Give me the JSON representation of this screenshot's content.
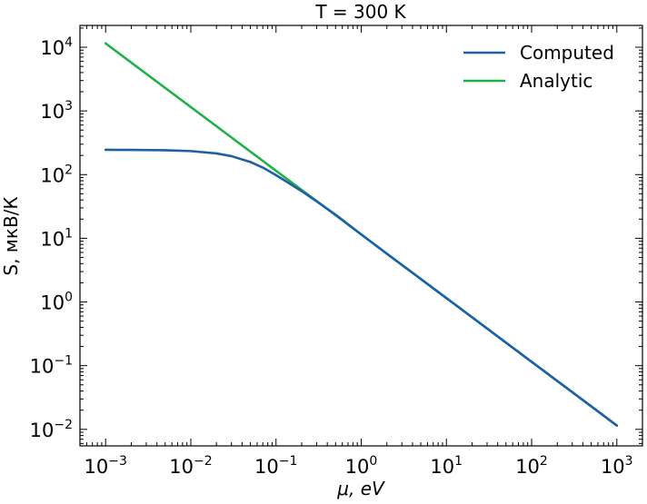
{
  "chart_data": {
    "type": "line",
    "title": "T = 300 K",
    "xlabel": "μ, eV",
    "ylabel": "S, мкВ/К",
    "xscale": "log",
    "yscale": "log",
    "xlim": [
      0.0005,
      2000
    ],
    "ylim": [
      0.0055,
      22000
    ],
    "xticks": [
      {
        "value": 0.001,
        "base": "10",
        "exp": "−3"
      },
      {
        "value": 0.01,
        "base": "10",
        "exp": "−2"
      },
      {
        "value": 0.1,
        "base": "10",
        "exp": "−1"
      },
      {
        "value": 1,
        "base": "10",
        "exp": "0"
      },
      {
        "value": 10,
        "base": "10",
        "exp": "1"
      },
      {
        "value": 100,
        "base": "10",
        "exp": "2"
      },
      {
        "value": 1000,
        "base": "10",
        "exp": "3"
      }
    ],
    "yticks": [
      {
        "value": 0.01,
        "base": "10",
        "exp": "−2"
      },
      {
        "value": 0.1,
        "base": "10",
        "exp": "−1"
      },
      {
        "value": 1,
        "base": "10",
        "exp": "0"
      },
      {
        "value": 10,
        "base": "10",
        "exp": "1"
      },
      {
        "value": 100,
        "base": "10",
        "exp": "2"
      },
      {
        "value": 1000,
        "base": "10",
        "exp": "3"
      },
      {
        "value": 10000,
        "base": "10",
        "exp": "4"
      }
    ],
    "grid": false,
    "legend_position": "top-right",
    "series": [
      {
        "name": "Computed",
        "color": "#1f5fa3",
        "x": [
          0.001,
          0.002,
          0.005,
          0.01,
          0.02,
          0.03,
          0.05,
          0.07,
          0.1,
          0.15,
          0.2,
          0.3,
          0.5,
          1,
          2,
          5,
          10,
          100,
          1000
        ],
        "y": [
          245,
          244,
          241,
          234,
          215,
          195,
          158,
          129,
          98,
          70,
          55,
          38,
          23.5,
          11.5,
          5.7,
          2.3,
          1.15,
          0.115,
          0.0115
        ]
      },
      {
        "name": "Analytic",
        "color": "#1fb04a",
        "x": [
          0.001,
          1000
        ],
        "y": [
          11500,
          0.0115
        ]
      }
    ]
  }
}
